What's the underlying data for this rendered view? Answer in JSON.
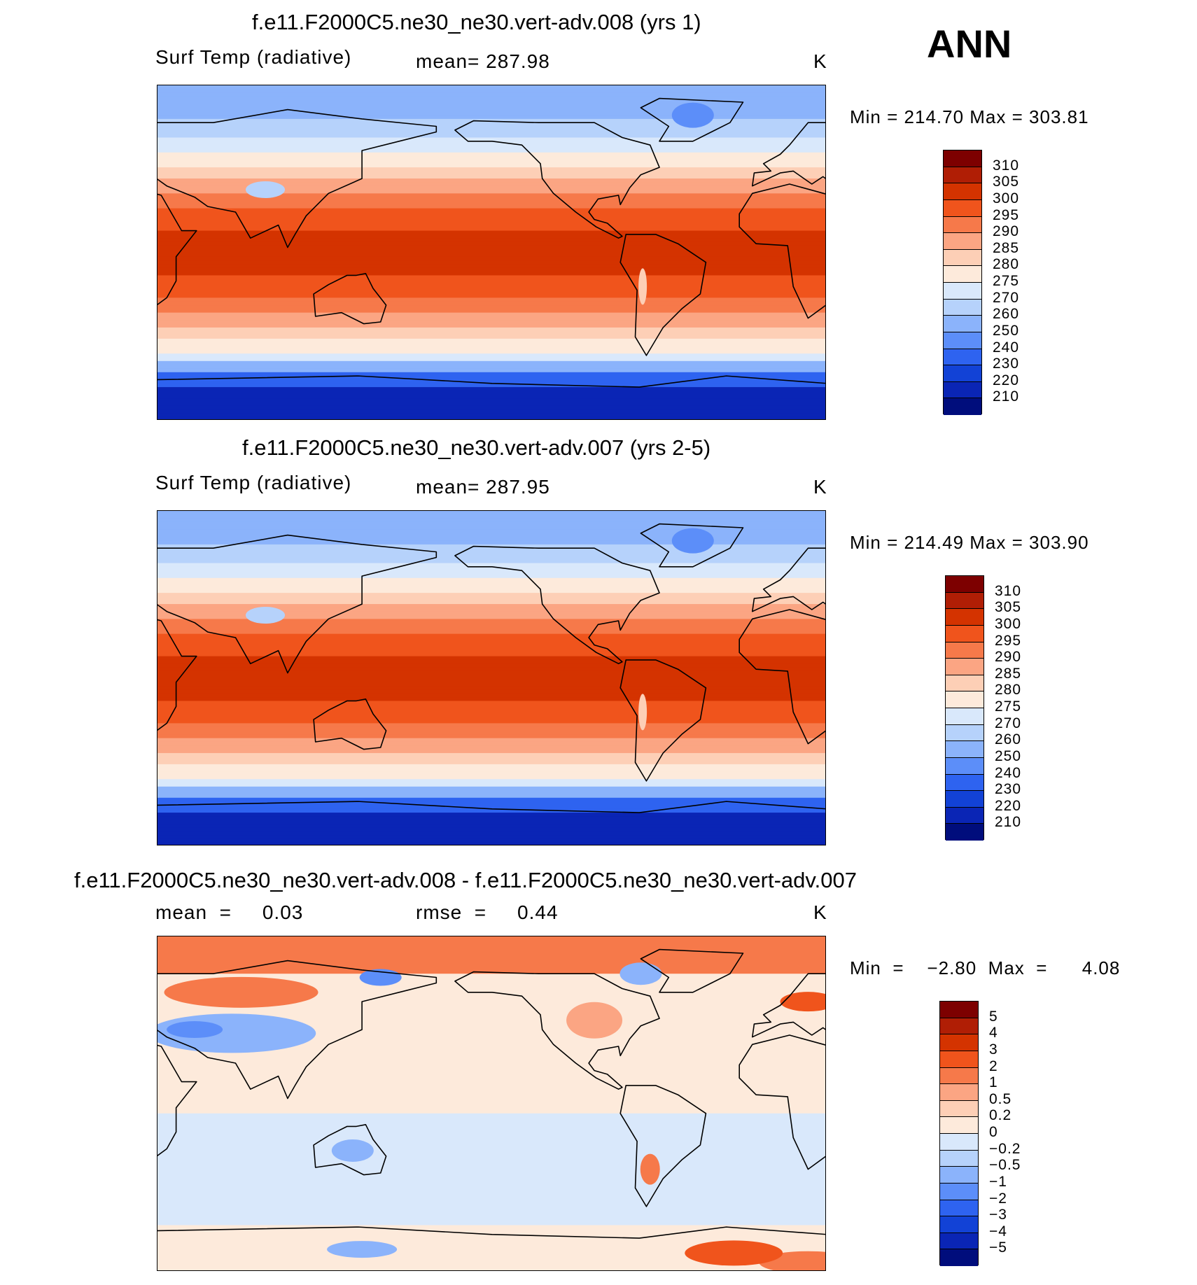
{
  "season": "ANN",
  "chart_data": [
    {
      "type": "heatmap",
      "title": "f.e11.F2000C5.ne30_ne30.vert-adv.008 (yrs 1)",
      "variable": "Surf Temp (radiative)",
      "mean_text": "mean=  287.98",
      "units": "K",
      "minmax_text": "Min  =  214.70  Max  =  303.81",
      "min": 214.7,
      "max": 303.81,
      "levels": [
        "310",
        "305",
        "300",
        "295",
        "290",
        "285",
        "280",
        "275",
        "270",
        "260",
        "250",
        "240",
        "230",
        "220",
        "210"
      ]
    },
    {
      "type": "heatmap",
      "title": "f.e11.F2000C5.ne30_ne30.vert-adv.007 (yrs 2-5)",
      "variable": "Surf Temp (radiative)",
      "mean_text": "mean=  287.95",
      "units": "K",
      "minmax_text": "Min  =  214.49  Max  =  303.90",
      "min": 214.49,
      "max": 303.9,
      "levels": [
        "310",
        "305",
        "300",
        "295",
        "290",
        "285",
        "280",
        "275",
        "270",
        "260",
        "250",
        "240",
        "230",
        "220",
        "210"
      ]
    },
    {
      "type": "heatmap",
      "title": "f.e11.F2000C5.ne30_ne30.vert-adv.008 - f.e11.F2000C5.ne30_ne30.vert-adv.007",
      "mean_text": "mean  =     0.03",
      "rmse_text": "rmse  =     0.44",
      "units": "K",
      "minmax_text": "Min  =    −2.80  Max  =      4.08",
      "mean": 0.03,
      "rmse": 0.44,
      "min": -2.8,
      "max": 4.08,
      "levels": [
        "5",
        "4",
        "3",
        "2",
        "1",
        "0.5",
        "0.2",
        "0",
        "−0.2",
        "−0.5",
        "−1",
        "−2",
        "−3",
        "−4",
        "−5"
      ]
    }
  ],
  "colors": {
    "temp_scale": [
      "#7d0000",
      "#b01e05",
      "#d43300",
      "#f0541c",
      "#f6794a",
      "#fba583",
      "#fdcfb6",
      "#fdeadb",
      "#d9e8fb",
      "#b6d2fb",
      "#8bb3fb",
      "#5c8ef9",
      "#2e63f0",
      "#1242d6",
      "#0a25b5",
      "#000d7c"
    ],
    "diff_scale": [
      "#7d0000",
      "#b01e05",
      "#d43300",
      "#f0541c",
      "#f6794a",
      "#fba583",
      "#fdcfb6",
      "#fdeadb",
      "#d9e8fb",
      "#b6d2fb",
      "#8bb3fb",
      "#5c8ef9",
      "#2e63f0",
      "#1242d6",
      "#0a25b5",
      "#000d7c"
    ]
  }
}
